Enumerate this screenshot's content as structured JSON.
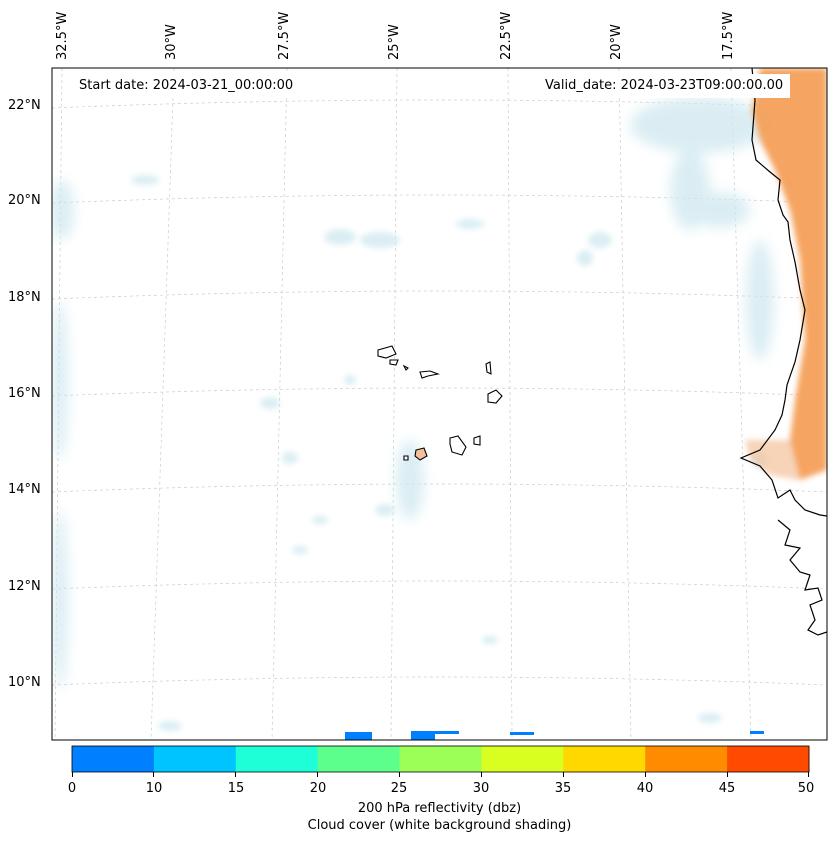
{
  "map": {
    "start_date": "Start date: 2024-03-21_00:00:00",
    "valid_date": "Valid_date: 2024-03-23T09:00:00.00",
    "lon_labels": [
      "32.5°W",
      "30°W",
      "27.5°W",
      "25°W",
      "22.5°W",
      "20°W",
      "17.5°W"
    ],
    "lat_labels": [
      "22°N",
      "20°N",
      "18°N",
      "16°N",
      "14°N",
      "12°N",
      "10°N"
    ],
    "colors": {
      "cloud": "#cfe8f0",
      "dust": "#f4a05a",
      "coast": "#000000",
      "grid": "#c8c8c8"
    }
  },
  "colorbar": {
    "ticks": [
      "0",
      "10",
      "15",
      "20",
      "25",
      "30",
      "35",
      "40",
      "45",
      "50"
    ],
    "colors": [
      "#0080ff",
      "#00c4ff",
      "#1effd8",
      "#5cff8c",
      "#9cff58",
      "#d8ff20",
      "#ffd800",
      "#ff8c00",
      "#ff4a00"
    ],
    "label_line1": "200 hPa reflectivity (dbz)",
    "label_line2": "Cloud cover (white background shading)"
  }
}
